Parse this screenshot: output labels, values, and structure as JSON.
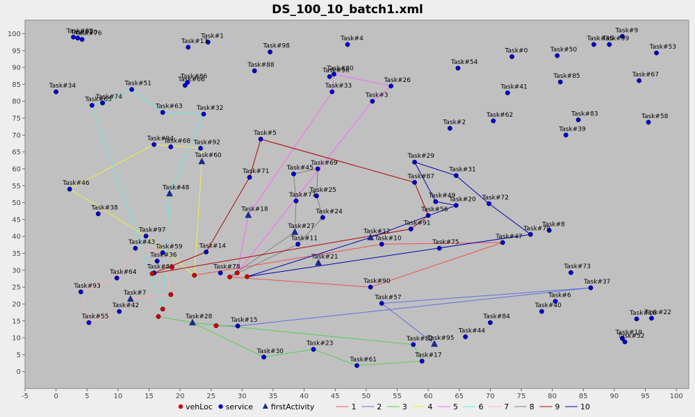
{
  "chart_data": {
    "type": "scatter",
    "title": "DS_100_10_batch1.xml",
    "xlim": [
      -5,
      102
    ],
    "ylim": [
      -5,
      104
    ],
    "xticks": [
      -5,
      0,
      5,
      10,
      15,
      20,
      25,
      30,
      35,
      40,
      45,
      50,
      55,
      60,
      65,
      70,
      75,
      80,
      85,
      90,
      95,
      100
    ],
    "yticks": [
      0,
      5,
      10,
      15,
      20,
      25,
      30,
      35,
      40,
      45,
      50,
      55,
      60,
      65,
      70,
      75,
      80,
      85,
      90,
      95,
      100
    ],
    "grid": false,
    "legend_position": "bottom",
    "colors": {
      "plot_bg": "#c0c0c0",
      "vehLoc": "#cc0000",
      "service": "#0000cc",
      "firstActivity": "#1a2a8a"
    },
    "legend": [
      {
        "label": "vehLoc",
        "marker": "circle",
        "color": "#cc0000"
      },
      {
        "label": "service",
        "marker": "circle",
        "color": "#0000cc"
      },
      {
        "label": "firstActivity",
        "marker": "triangle",
        "color": "#1a2a8a"
      },
      {
        "label": "1",
        "marker": "line",
        "color": "#f05050"
      },
      {
        "label": "2",
        "marker": "line",
        "color": "#6070e0"
      },
      {
        "label": "3",
        "marker": "line",
        "color": "#50d050"
      },
      {
        "label": "4",
        "marker": "line",
        "color": "#f0f040"
      },
      {
        "label": "5",
        "marker": "line",
        "color": "#ff60ff"
      },
      {
        "label": "6",
        "marker": "line",
        "color": "#60e8e8"
      },
      {
        "label": "7",
        "marker": "line",
        "color": "#ffb0b0"
      },
      {
        "label": "8",
        "marker": "line",
        "color": "#808080"
      },
      {
        "label": "9",
        "marker": "line",
        "color": "#b00000"
      },
      {
        "label": "10",
        "marker": "line",
        "color": "#0000b0"
      }
    ],
    "vehicles": [
      {
        "x": 15.5,
        "y": 29
      },
      {
        "x": 17.2,
        "y": 18.5
      },
      {
        "x": 16.5,
        "y": 16.3
      },
      {
        "x": 18.5,
        "y": 22.8
      },
      {
        "x": 18.7,
        "y": 30.9
      },
      {
        "x": 22.3,
        "y": 28.5
      },
      {
        "x": 25.8,
        "y": 13.6
      },
      {
        "x": 28,
        "y": 28
      },
      {
        "x": 29.2,
        "y": 29.2
      },
      {
        "x": 30.8,
        "y": 28.1
      }
    ],
    "tasks": [
      {
        "label": "Task#0",
        "x": 73.5,
        "y": 93.2
      },
      {
        "label": "Task#1",
        "x": 24.5,
        "y": 97.5
      },
      {
        "label": "Task#2",
        "x": 63.5,
        "y": 72
      },
      {
        "label": "Task#3",
        "x": 51,
        "y": 80
      },
      {
        "label": "Task#4",
        "x": 47,
        "y": 96.8
      },
      {
        "label": "Task#5",
        "x": 33,
        "y": 68.8
      },
      {
        "label": "Task#6",
        "x": 80.5,
        "y": 20.8
      },
      {
        "label": "Task#7",
        "x": 12,
        "y": 21.5,
        "first": true
      },
      {
        "label": "Task#8",
        "x": 79.5,
        "y": 41.8
      },
      {
        "label": "Task#9",
        "x": 91.3,
        "y": 99.2
      },
      {
        "label": "Task#10",
        "x": 52.5,
        "y": 37.7
      },
      {
        "label": "Task#11",
        "x": 39,
        "y": 37.7
      },
      {
        "label": "Task#12",
        "x": 50.7,
        "y": 39.7,
        "first": true
      },
      {
        "label": "Task#13",
        "x": 21.3,
        "y": 96
      },
      {
        "label": "Task#14",
        "x": 24.2,
        "y": 35.4
      },
      {
        "label": "Task#15",
        "x": 29.3,
        "y": 13.5
      },
      {
        "label": "Task#16",
        "x": 93.6,
        "y": 15.6
      },
      {
        "label": "Task#17",
        "x": 59,
        "y": 3.1
      },
      {
        "label": "Task#18",
        "x": 31,
        "y": 46.3,
        "first": true
      },
      {
        "label": "Task#19",
        "x": 91.3,
        "y": 9.8
      },
      {
        "label": "Task#20",
        "x": 64.5,
        "y": 49.2
      },
      {
        "label": "Task#21",
        "x": 42.3,
        "y": 32.2,
        "first": true
      },
      {
        "label": "Task#22",
        "x": 96,
        "y": 15.8
      },
      {
        "label": "Task#23",
        "x": 41.5,
        "y": 6.6
      },
      {
        "label": "Task#24",
        "x": 43,
        "y": 45.6
      },
      {
        "label": "Task#25",
        "x": 42,
        "y": 52
      },
      {
        "label": "Task#26",
        "x": 54,
        "y": 84.5
      },
      {
        "label": "Task#27",
        "x": 38.5,
        "y": 41.3,
        "first": true
      },
      {
        "label": "Task#28",
        "x": 22,
        "y": 14.5,
        "first": true
      },
      {
        "label": "Task#29",
        "x": 57.8,
        "y": 62
      },
      {
        "label": "Task#30",
        "x": 33.5,
        "y": 4.3
      },
      {
        "label": "Task#31",
        "x": 64.5,
        "y": 58
      },
      {
        "label": "Task#32",
        "x": 23.8,
        "y": 76.2
      },
      {
        "label": "Task#33",
        "x": 44.5,
        "y": 82.8
      },
      {
        "label": "Task#34",
        "x": 0,
        "y": 82.8
      },
      {
        "label": "Task#35",
        "x": 86.7,
        "y": 96.8
      },
      {
        "label": "Task#36",
        "x": 16.3,
        "y": 32.7
      },
      {
        "label": "Task#37",
        "x": 86.2,
        "y": 24.8
      },
      {
        "label": "Task#38",
        "x": 6.8,
        "y": 46.7
      },
      {
        "label": "Task#39",
        "x": 82.2,
        "y": 70
      },
      {
        "label": "Task#40",
        "x": 78.3,
        "y": 17.8
      },
      {
        "label": "Task#41",
        "x": 72.8,
        "y": 82.5
      },
      {
        "label": "Task#42",
        "x": 10.2,
        "y": 17.8
      },
      {
        "label": "Task#43",
        "x": 12.8,
        "y": 36.5
      },
      {
        "label": "Task#44",
        "x": 66,
        "y": 10.3
      },
      {
        "label": "Task#45",
        "x": 38.3,
        "y": 58.5
      },
      {
        "label": "Task#46",
        "x": 2.2,
        "y": 54
      },
      {
        "label": "Task#47",
        "x": 72,
        "y": 38.2
      },
      {
        "label": "Task#48",
        "x": 18.3,
        "y": 52.7,
        "first": true
      },
      {
        "label": "Task#49",
        "x": 61.2,
        "y": 50.3
      },
      {
        "label": "Task#50",
        "x": 80.8,
        "y": 93.5
      },
      {
        "label": "Task#51",
        "x": 12.2,
        "y": 83.5
      },
      {
        "label": "Task#52",
        "x": 91.7,
        "y": 8.8
      },
      {
        "label": "Task#53",
        "x": 96.8,
        "y": 94.3
      },
      {
        "label": "Task#54",
        "x": 64.8,
        "y": 89.8
      },
      {
        "label": "Task#55",
        "x": 5.3,
        "y": 14.5
      },
      {
        "label": "Task#56",
        "x": 60,
        "y": 46.2
      },
      {
        "label": "Task#57",
        "x": 52.5,
        "y": 20.2
      },
      {
        "label": "Task#58",
        "x": 95.5,
        "y": 73.8
      },
      {
        "label": "Task#59",
        "x": 17.2,
        "y": 35.2
      },
      {
        "label": "Task#60",
        "x": 23.5,
        "y": 62.2,
        "first": true
      },
      {
        "label": "Task#61",
        "x": 48.5,
        "y": 1.8
      },
      {
        "label": "Task#62",
        "x": 70.5,
        "y": 74.2
      },
      {
        "label": "Task#63",
        "x": 17.2,
        "y": 76.7
      },
      {
        "label": "Task#64",
        "x": 9.8,
        "y": 27.7
      },
      {
        "label": "Task#65",
        "x": 5.8,
        "y": 78.8
      },
      {
        "label": "Task#66",
        "x": 20.8,
        "y": 84.7
      },
      {
        "label": "Task#67",
        "x": 94,
        "y": 86.1
      },
      {
        "label": "Task#68",
        "x": 18.5,
        "y": 66.5
      },
      {
        "label": "Task#69",
        "x": 42.2,
        "y": 60
      },
      {
        "label": "Task#70",
        "x": 3.5,
        "y": 98.7
      },
      {
        "label": "Task#71",
        "x": 31.2,
        "y": 57.5
      },
      {
        "label": "Task#72",
        "x": 69.8,
        "y": 49.7
      },
      {
        "label": "Task#73",
        "x": 83,
        "y": 29.3
      },
      {
        "label": "Task#74",
        "x": 7.5,
        "y": 79.5
      },
      {
        "label": "Task#75",
        "x": 61.8,
        "y": 36.5
      },
      {
        "label": "Task#76",
        "x": 4.2,
        "y": 98.3
      },
      {
        "label": "Task#77",
        "x": 38.7,
        "y": 50.5
      },
      {
        "label": "Task#78",
        "x": 26.5,
        "y": 29.2
      },
      {
        "label": "Task#79",
        "x": 76.5,
        "y": 40.6
      },
      {
        "label": "Task#80",
        "x": 44.8,
        "y": 88
      },
      {
        "label": "Task#81",
        "x": 15.8,
        "y": 29.2
      },
      {
        "label": "Task#82",
        "x": 57.6,
        "y": 8
      },
      {
        "label": "Task#83",
        "x": 84.2,
        "y": 74.5
      },
      {
        "label": "Task#84",
        "x": 70,
        "y": 14.5
      },
      {
        "label": "Task#85",
        "x": 81.3,
        "y": 85.7
      },
      {
        "label": "Task#86",
        "x": 21.2,
        "y": 85.6
      },
      {
        "label": "Task#87",
        "x": 57.8,
        "y": 56
      },
      {
        "label": "Task#88",
        "x": 32,
        "y": 89
      },
      {
        "label": "Task#89",
        "x": 2.8,
        "y": 99
      },
      {
        "label": "Task#90",
        "x": 50.7,
        "y": 25
      },
      {
        "label": "Task#91",
        "x": 57.2,
        "y": 42.2
      },
      {
        "label": "Task#92",
        "x": 23.3,
        "y": 66.1
      },
      {
        "label": "Task#93",
        "x": 4,
        "y": 23.6
      },
      {
        "label": "Task#94",
        "x": 15.8,
        "y": 67.2
      },
      {
        "label": "Task#95",
        "x": 61,
        "y": 8.2,
        "first": true
      },
      {
        "label": "Task#96",
        "x": 44.1,
        "y": 87.3
      },
      {
        "label": "Task#97",
        "x": 14.5,
        "y": 40.1
      },
      {
        "label": "Task#98",
        "x": 34.5,
        "y": 94.6
      },
      {
        "label": "Task#99",
        "x": 89.2,
        "y": 96.8
      }
    ],
    "routes": [
      {
        "name": "1",
        "color": "#f05050",
        "path": [
          [
            28,
            28
          ],
          [
            50.7,
            25
          ],
          [
            72,
            38.2
          ],
          [
            52.5,
            37.7
          ],
          [
            22.3,
            28.5
          ]
        ]
      },
      {
        "name": "2",
        "color": "#6070e0",
        "path": [
          [
            25.8,
            13.6
          ],
          [
            29.3,
            13.5
          ],
          [
            86.2,
            24.8
          ],
          [
            52.5,
            20.2
          ],
          [
            61,
            8.2
          ]
        ]
      },
      {
        "name": "3",
        "color": "#50d050",
        "path": [
          [
            16.5,
            16.3
          ],
          [
            22,
            14.5
          ],
          [
            33.5,
            4.3
          ],
          [
            41.5,
            6.6
          ],
          [
            48.5,
            1.8
          ],
          [
            59,
            3.1
          ],
          [
            57.6,
            8
          ],
          [
            22,
            14.5
          ]
        ]
      },
      {
        "name": "4",
        "color": "#f0f040",
        "path": [
          [
            22.3,
            28.5
          ],
          [
            23.5,
            62.2
          ],
          [
            23.3,
            66.1
          ],
          [
            15.8,
            67.2
          ],
          [
            2.2,
            54
          ],
          [
            14.5,
            40.1
          ],
          [
            22.3,
            28.5
          ]
        ]
      },
      {
        "name": "5",
        "color": "#ff60ff",
        "path": [
          [
            29.2,
            29.2
          ],
          [
            31,
            46.3
          ],
          [
            44.5,
            82.8
          ],
          [
            44.8,
            88
          ],
          [
            54,
            84.5
          ],
          [
            51,
            80
          ],
          [
            29.2,
            29.2
          ]
        ]
      },
      {
        "name": "6",
        "color": "#60e8e8",
        "path": [
          [
            17.2,
            18.5
          ],
          [
            18.3,
            52.7
          ],
          [
            23.8,
            76.2
          ],
          [
            17.2,
            76.7
          ],
          [
            12.2,
            83.5
          ],
          [
            7.5,
            79.5
          ],
          [
            5.8,
            78.8
          ],
          [
            17.2,
            18.5
          ]
        ]
      },
      {
        "name": "7",
        "color": "#ffb0b0",
        "path": [
          [
            18.5,
            22.8
          ],
          [
            12,
            21.5
          ],
          [
            10.2,
            17.8
          ],
          [
            5.3,
            14.5
          ],
          [
            4,
            23.6
          ],
          [
            9.8,
            27.7
          ],
          [
            12.8,
            36.5
          ],
          [
            17.2,
            35.2
          ],
          [
            18.5,
            22.8
          ]
        ]
      },
      {
        "name": "8",
        "color": "#808080",
        "path": [
          [
            28,
            28
          ],
          [
            38.5,
            41.3
          ],
          [
            38.7,
            50.5
          ],
          [
            38.3,
            58.5
          ],
          [
            42.2,
            60
          ],
          [
            42,
            52
          ],
          [
            43,
            45.6
          ],
          [
            39,
            37.7
          ],
          [
            28,
            28
          ]
        ]
      },
      {
        "name": "9",
        "color": "#b00000",
        "path": [
          [
            15.5,
            29
          ],
          [
            24.2,
            35.4
          ],
          [
            31.2,
            57.5
          ],
          [
            33,
            68.8
          ],
          [
            57.8,
            56
          ],
          [
            60,
            46.2
          ],
          [
            57.2,
            42.2
          ],
          [
            15.5,
            29
          ]
        ]
      },
      {
        "name": "10",
        "color": "#0000b0",
        "path": [
          [
            30.8,
            28.1
          ],
          [
            50.7,
            39.7
          ],
          [
            64.5,
            49.2
          ],
          [
            61.2,
            50.3
          ],
          [
            57.8,
            62
          ],
          [
            64.5,
            58
          ],
          [
            69.8,
            49.7
          ],
          [
            76.5,
            40.6
          ],
          [
            30.8,
            28.1
          ]
        ]
      }
    ]
  }
}
